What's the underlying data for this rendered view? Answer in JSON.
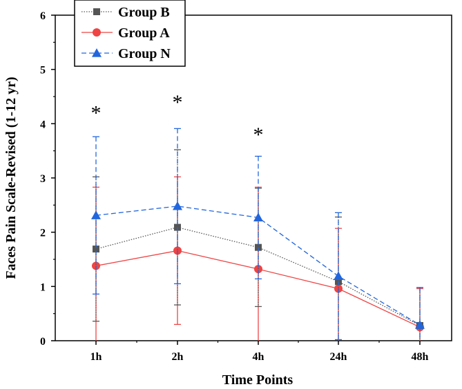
{
  "chart_data": {
    "type": "line",
    "title": "",
    "xlabel": "Time Points",
    "ylabel": "Faces Pain Scale-Revised (1-12 yr)",
    "categories": [
      "1h",
      "2h",
      "4h",
      "24h",
      "48h"
    ],
    "ylim": [
      0,
      6
    ],
    "yticks": [
      "0",
      "1",
      "2",
      "3",
      "4",
      "5",
      "6"
    ],
    "grid": false,
    "legend_position": "top-left",
    "series": [
      {
        "name": "Group B",
        "color": "#555555",
        "line_style": "dotted",
        "marker": "square",
        "values": [
          1.69,
          2.09,
          1.72,
          1.09,
          0.28
        ],
        "error": [
          1.33,
          1.43,
          1.09,
          1.19,
          0.7
        ]
      },
      {
        "name": "Group A",
        "color": "#ee4444",
        "line_style": "solid",
        "marker": "circle",
        "values": [
          1.38,
          1.66,
          1.32,
          0.96,
          0.25
        ],
        "error": [
          1.45,
          1.36,
          1.51,
          1.11,
          0.71
        ]
      },
      {
        "name": "Group N",
        "color": "#2266dd",
        "line_style": "dashed",
        "marker": "triangle",
        "values": [
          2.31,
          2.48,
          2.27,
          1.19,
          0.29
        ],
        "error": [
          1.45,
          1.43,
          1.13,
          1.17,
          0.69
        ]
      }
    ],
    "annotations": [
      {
        "text": "*",
        "category": "1h",
        "y": 4.2
      },
      {
        "text": "*",
        "category": "2h",
        "y": 4.4
      },
      {
        "text": "*",
        "category": "4h",
        "y": 3.8
      }
    ]
  }
}
